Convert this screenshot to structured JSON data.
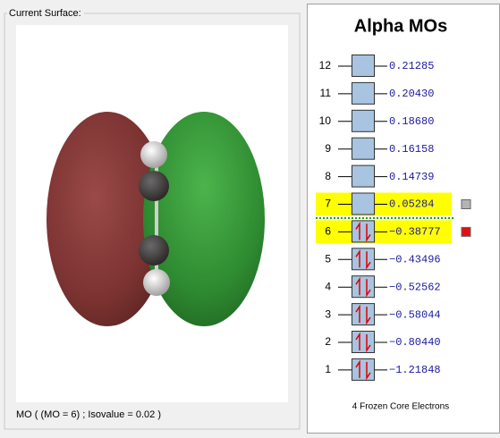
{
  "surface_panel": {
    "label": "Current Surface:",
    "status": "MO ( (MO = 6) ; Isovalue = 0.02 )"
  },
  "mo_panel": {
    "title": "Alpha MOs",
    "footer": "4 Frozen Core Electrons",
    "orbitals": [
      {
        "number": "12",
        "energy": "0.21285",
        "occupied": false
      },
      {
        "number": "11",
        "energy": "0.20430",
        "occupied": false
      },
      {
        "number": "10",
        "energy": "0.18680",
        "occupied": false
      },
      {
        "number": "9",
        "energy": "0.16158",
        "occupied": false
      },
      {
        "number": "8",
        "energy": "0.14739",
        "occupied": false
      },
      {
        "number": "7",
        "energy": "0.05284",
        "occupied": false,
        "highlighted": true,
        "marker": "#b4b4b4"
      },
      {
        "number": "6",
        "energy": "−0.38777",
        "occupied": true,
        "highlighted": true,
        "marker": "#e01010"
      },
      {
        "number": "5",
        "energy": "−0.43496",
        "occupied": true
      },
      {
        "number": "4",
        "energy": "−0.52562",
        "occupied": true
      },
      {
        "number": "3",
        "energy": "−0.58044",
        "occupied": true
      },
      {
        "number": "2",
        "energy": "−0.80440",
        "occupied": true
      },
      {
        "number": "1",
        "energy": "−1.21848",
        "occupied": true
      }
    ]
  }
}
